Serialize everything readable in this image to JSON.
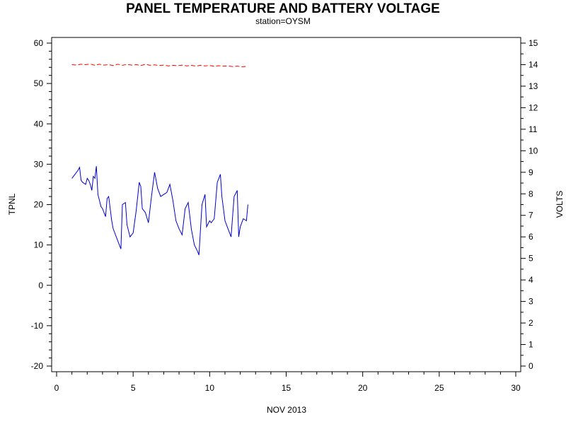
{
  "chart_data": {
    "type": "line",
    "title": "PANEL TEMPERATURE AND BATTERY VOLTAGE",
    "subtitle": "station=OYSM",
    "xlabel": "NOV 2013",
    "ylabel_left": "TPNL",
    "ylabel_right": "VOLTS",
    "xlim": [
      0,
      30
    ],
    "ylim_left": [
      -20,
      60
    ],
    "ylim_right": [
      0,
      15
    ],
    "x_ticks": [
      "0",
      "5",
      "10",
      "15",
      "20",
      "25",
      "30"
    ],
    "y_left_ticks": [
      "-20",
      "-10",
      "0",
      "10",
      "20",
      "30",
      "40",
      "50",
      "60"
    ],
    "y_right_ticks": [
      "0",
      "1",
      "2",
      "3",
      "4",
      "5",
      "6",
      "7",
      "8",
      "9",
      "10",
      "11",
      "12",
      "13",
      "14",
      "15"
    ],
    "grid": false,
    "series": [
      {
        "axis": "left",
        "color": "#0000cc",
        "x": [
          1.0,
          1.2,
          1.4,
          1.5,
          1.6,
          1.7,
          1.9,
          2.0,
          2.1,
          2.2,
          2.3,
          2.4,
          2.5,
          2.6,
          2.7,
          2.8,
          2.9,
          3.0,
          3.2,
          3.3,
          3.4,
          3.6,
          3.7,
          3.8,
          4.0,
          4.2,
          4.3,
          4.5,
          4.6,
          4.8,
          5.0,
          5.2,
          5.4,
          5.5,
          5.6,
          5.8,
          6.0,
          6.2,
          6.4,
          6.6,
          6.8,
          7.0,
          7.2,
          7.4,
          7.6,
          7.8,
          8.0,
          8.2,
          8.4,
          8.6,
          8.8,
          9.0,
          9.2,
          9.3,
          9.5,
          9.7,
          9.8,
          10.0,
          10.1,
          10.3,
          10.5,
          10.7,
          10.8,
          11.0,
          11.2,
          11.4,
          11.6,
          11.8,
          11.9,
          12.0,
          12.2,
          12.4,
          12.5
        ],
        "y": [
          26.5,
          27.5,
          28.5,
          29.2,
          26.0,
          25.5,
          25.0,
          26.5,
          26.0,
          25.0,
          23.5,
          27.0,
          26.5,
          29.5,
          22.5,
          21.0,
          19.5,
          19.0,
          17.0,
          21.5,
          22.0,
          16.0,
          14.0,
          13.0,
          11.0,
          9.0,
          20.0,
          20.5,
          15.0,
          12.0,
          13.0,
          18.5,
          25.5,
          24.5,
          19.0,
          18.0,
          15.5,
          22.0,
          28.0,
          24.0,
          22.0,
          22.5,
          23.0,
          25.0,
          21.0,
          16.0,
          14.0,
          12.5,
          19.0,
          20.5,
          14.0,
          10.0,
          8.5,
          7.5,
          20.0,
          22.5,
          14.5,
          16.0,
          15.5,
          16.5,
          25.5,
          27.5,
          22.0,
          16.0,
          14.0,
          12.0,
          22.0,
          23.5,
          12.0,
          14.5,
          16.5,
          16.0,
          20.0
        ]
      },
      {
        "axis": "right",
        "color": "#ff0000",
        "x": [
          1.0,
          1.3,
          1.6,
          1.9,
          2.2,
          2.5,
          2.8,
          3.1,
          3.4,
          3.7,
          4.0,
          4.3,
          4.6,
          4.9,
          5.2,
          5.5,
          5.8,
          6.1,
          6.4,
          6.7,
          7.0,
          7.3,
          7.6,
          7.9,
          8.2,
          8.5,
          8.8,
          9.1,
          9.4,
          9.7,
          10.0,
          10.3,
          10.6,
          10.9,
          11.2,
          11.5,
          11.8,
          12.1,
          12.4
        ],
        "y": [
          14.0,
          13.98,
          14.02,
          14.0,
          14.03,
          13.97,
          14.02,
          13.98,
          14.0,
          13.96,
          14.02,
          13.97,
          14.01,
          13.98,
          14.0,
          13.96,
          14.02,
          13.97,
          13.99,
          13.96,
          13.98,
          13.94,
          13.97,
          13.95,
          13.98,
          13.94,
          13.97,
          13.93,
          13.97,
          13.94,
          13.96,
          13.92,
          13.95,
          13.93,
          13.94,
          13.91,
          13.93,
          13.9,
          13.92
        ]
      }
    ]
  }
}
